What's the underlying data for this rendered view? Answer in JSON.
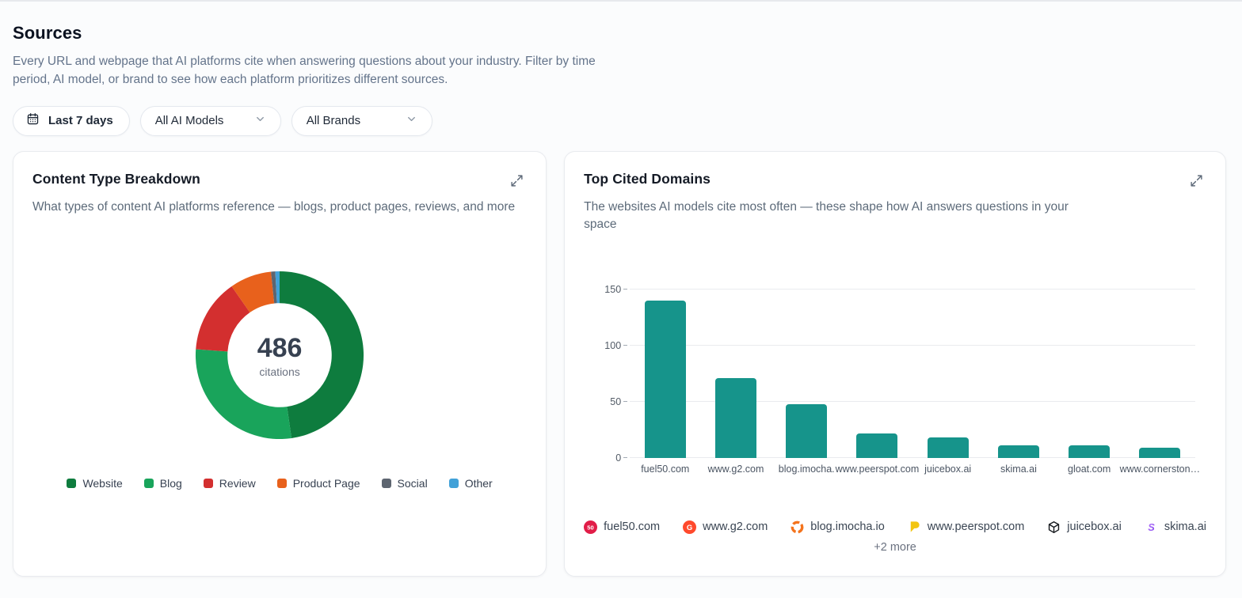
{
  "page": {
    "title": "Sources",
    "description": "Every URL and webpage that AI platforms cite when answering questions about your industry. Filter by time period, AI model, or brand to see how each platform prioritizes different sources."
  },
  "filters": {
    "date_range": "Last 7 days",
    "ai_model": "All AI Models",
    "brand": "All Brands"
  },
  "content_type_card": {
    "title": "Content Type Breakdown",
    "subtitle": "What types of content AI platforms reference — blogs, product pages, reviews, and more",
    "center_value": "486",
    "center_label": "citations"
  },
  "top_domains_card": {
    "title": "Top Cited Domains",
    "subtitle": "The websites AI models cite most often — these shape how AI answers questions in your space",
    "more_label": "+2 more",
    "favicon_domains": [
      {
        "domain": "fuel50.com",
        "icon": "fuel50-favicon"
      },
      {
        "domain": "www.g2.com",
        "icon": "g2-favicon"
      },
      {
        "domain": "blog.imocha.io",
        "icon": "imocha-favicon"
      },
      {
        "domain": "www.peerspot.com",
        "icon": "peerspot-favicon"
      },
      {
        "domain": "juicebox.ai",
        "icon": "juicebox-favicon"
      },
      {
        "domain": "skima.ai",
        "icon": "skima-favicon"
      }
    ]
  },
  "chart_data": [
    {
      "type": "pie",
      "title": "Content Type Breakdown",
      "total": 486,
      "center_label": "citations",
      "legend_position": "bottom",
      "segments": [
        {
          "label": "Website",
          "value": 232,
          "color": "#0e7c3e"
        },
        {
          "label": "Blog",
          "value": 138,
          "color": "#19a45b"
        },
        {
          "label": "Review",
          "value": 69,
          "color": "#d32f2f"
        },
        {
          "label": "Product Page",
          "value": 39,
          "color": "#e8611c"
        },
        {
          "label": "Social",
          "value": 4,
          "color": "#5d6570"
        },
        {
          "label": "Other",
          "value": 4,
          "color": "#41a1d8"
        }
      ]
    },
    {
      "type": "bar",
      "title": "Top Cited Domains",
      "categories": [
        "fuel50.com",
        "www.g2.com",
        "blog.imocha.",
        "www.peerspot.com",
        "juicebox.ai",
        "skima.ai",
        "gloat.com",
        "www.cornerston…"
      ],
      "values": [
        140,
        71,
        48,
        22,
        18,
        11,
        11,
        9
      ],
      "bar_color": "#16948b",
      "yticks": [
        0,
        50,
        100,
        150
      ],
      "ylim": [
        0,
        150
      ],
      "grid": true,
      "xlabel": "",
      "ylabel": ""
    }
  ]
}
